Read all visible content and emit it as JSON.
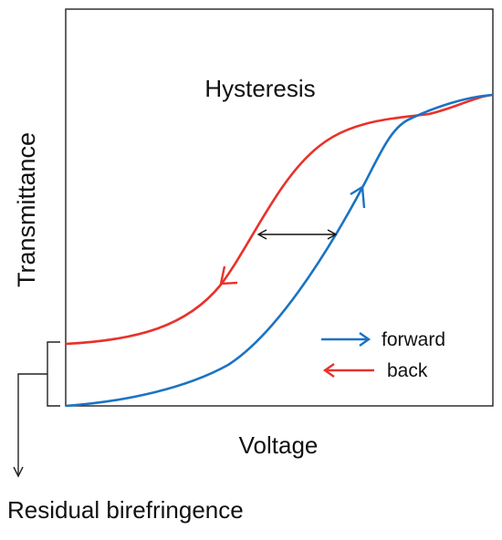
{
  "title": "Hysteresis",
  "xlabel": "Voltage",
  "ylabel": "Transmittance",
  "annotation": "Residual birefringence",
  "legend": {
    "forward": "forward",
    "back": "back"
  },
  "colors": {
    "forward": "#1a73c4",
    "back": "#e8322a",
    "axis": "#222222",
    "arrow": "#111111"
  }
}
